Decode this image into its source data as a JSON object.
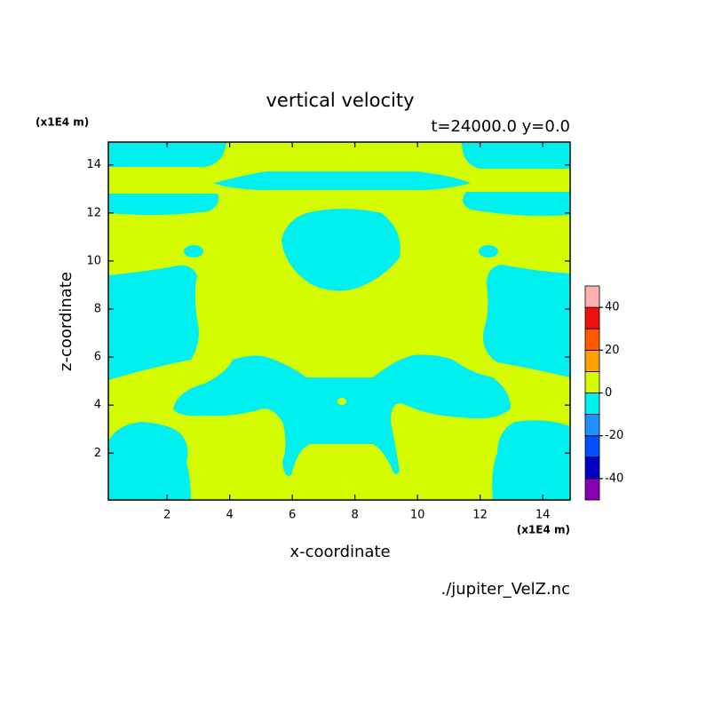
{
  "chart_data": {
    "type": "contour",
    "title": "vertical velocity",
    "subtitle": "t=24000.0 y=0.0",
    "x_label": "x-coordinate",
    "y_label": "z-coordinate",
    "x_unit": "(x1E4 m)",
    "y_unit": "(x1E4 m)",
    "source": "./jupiter_VelZ.nc",
    "xlim": [
      0.125,
      14.875
    ],
    "ylim": [
      0.05,
      14.95
    ],
    "xticks": [
      2,
      4,
      6,
      8,
      10,
      12,
      14
    ],
    "yticks": [
      2,
      4,
      6,
      8,
      10,
      12,
      14
    ],
    "colorbar": {
      "levels": [
        -50,
        -40,
        -30,
        -20,
        -10,
        0,
        10,
        20,
        30,
        40,
        50
      ],
      "ticks": [
        -40,
        -20,
        0,
        20,
        40
      ],
      "colors": [
        "#8c00b4",
        "#0000c8",
        "#0050ff",
        "#1e90ff",
        "#00f0f0",
        "#d4fb00",
        "#ffa000",
        "#ff5a00",
        "#f01010",
        "#ffb0b0"
      ]
    }
  }
}
